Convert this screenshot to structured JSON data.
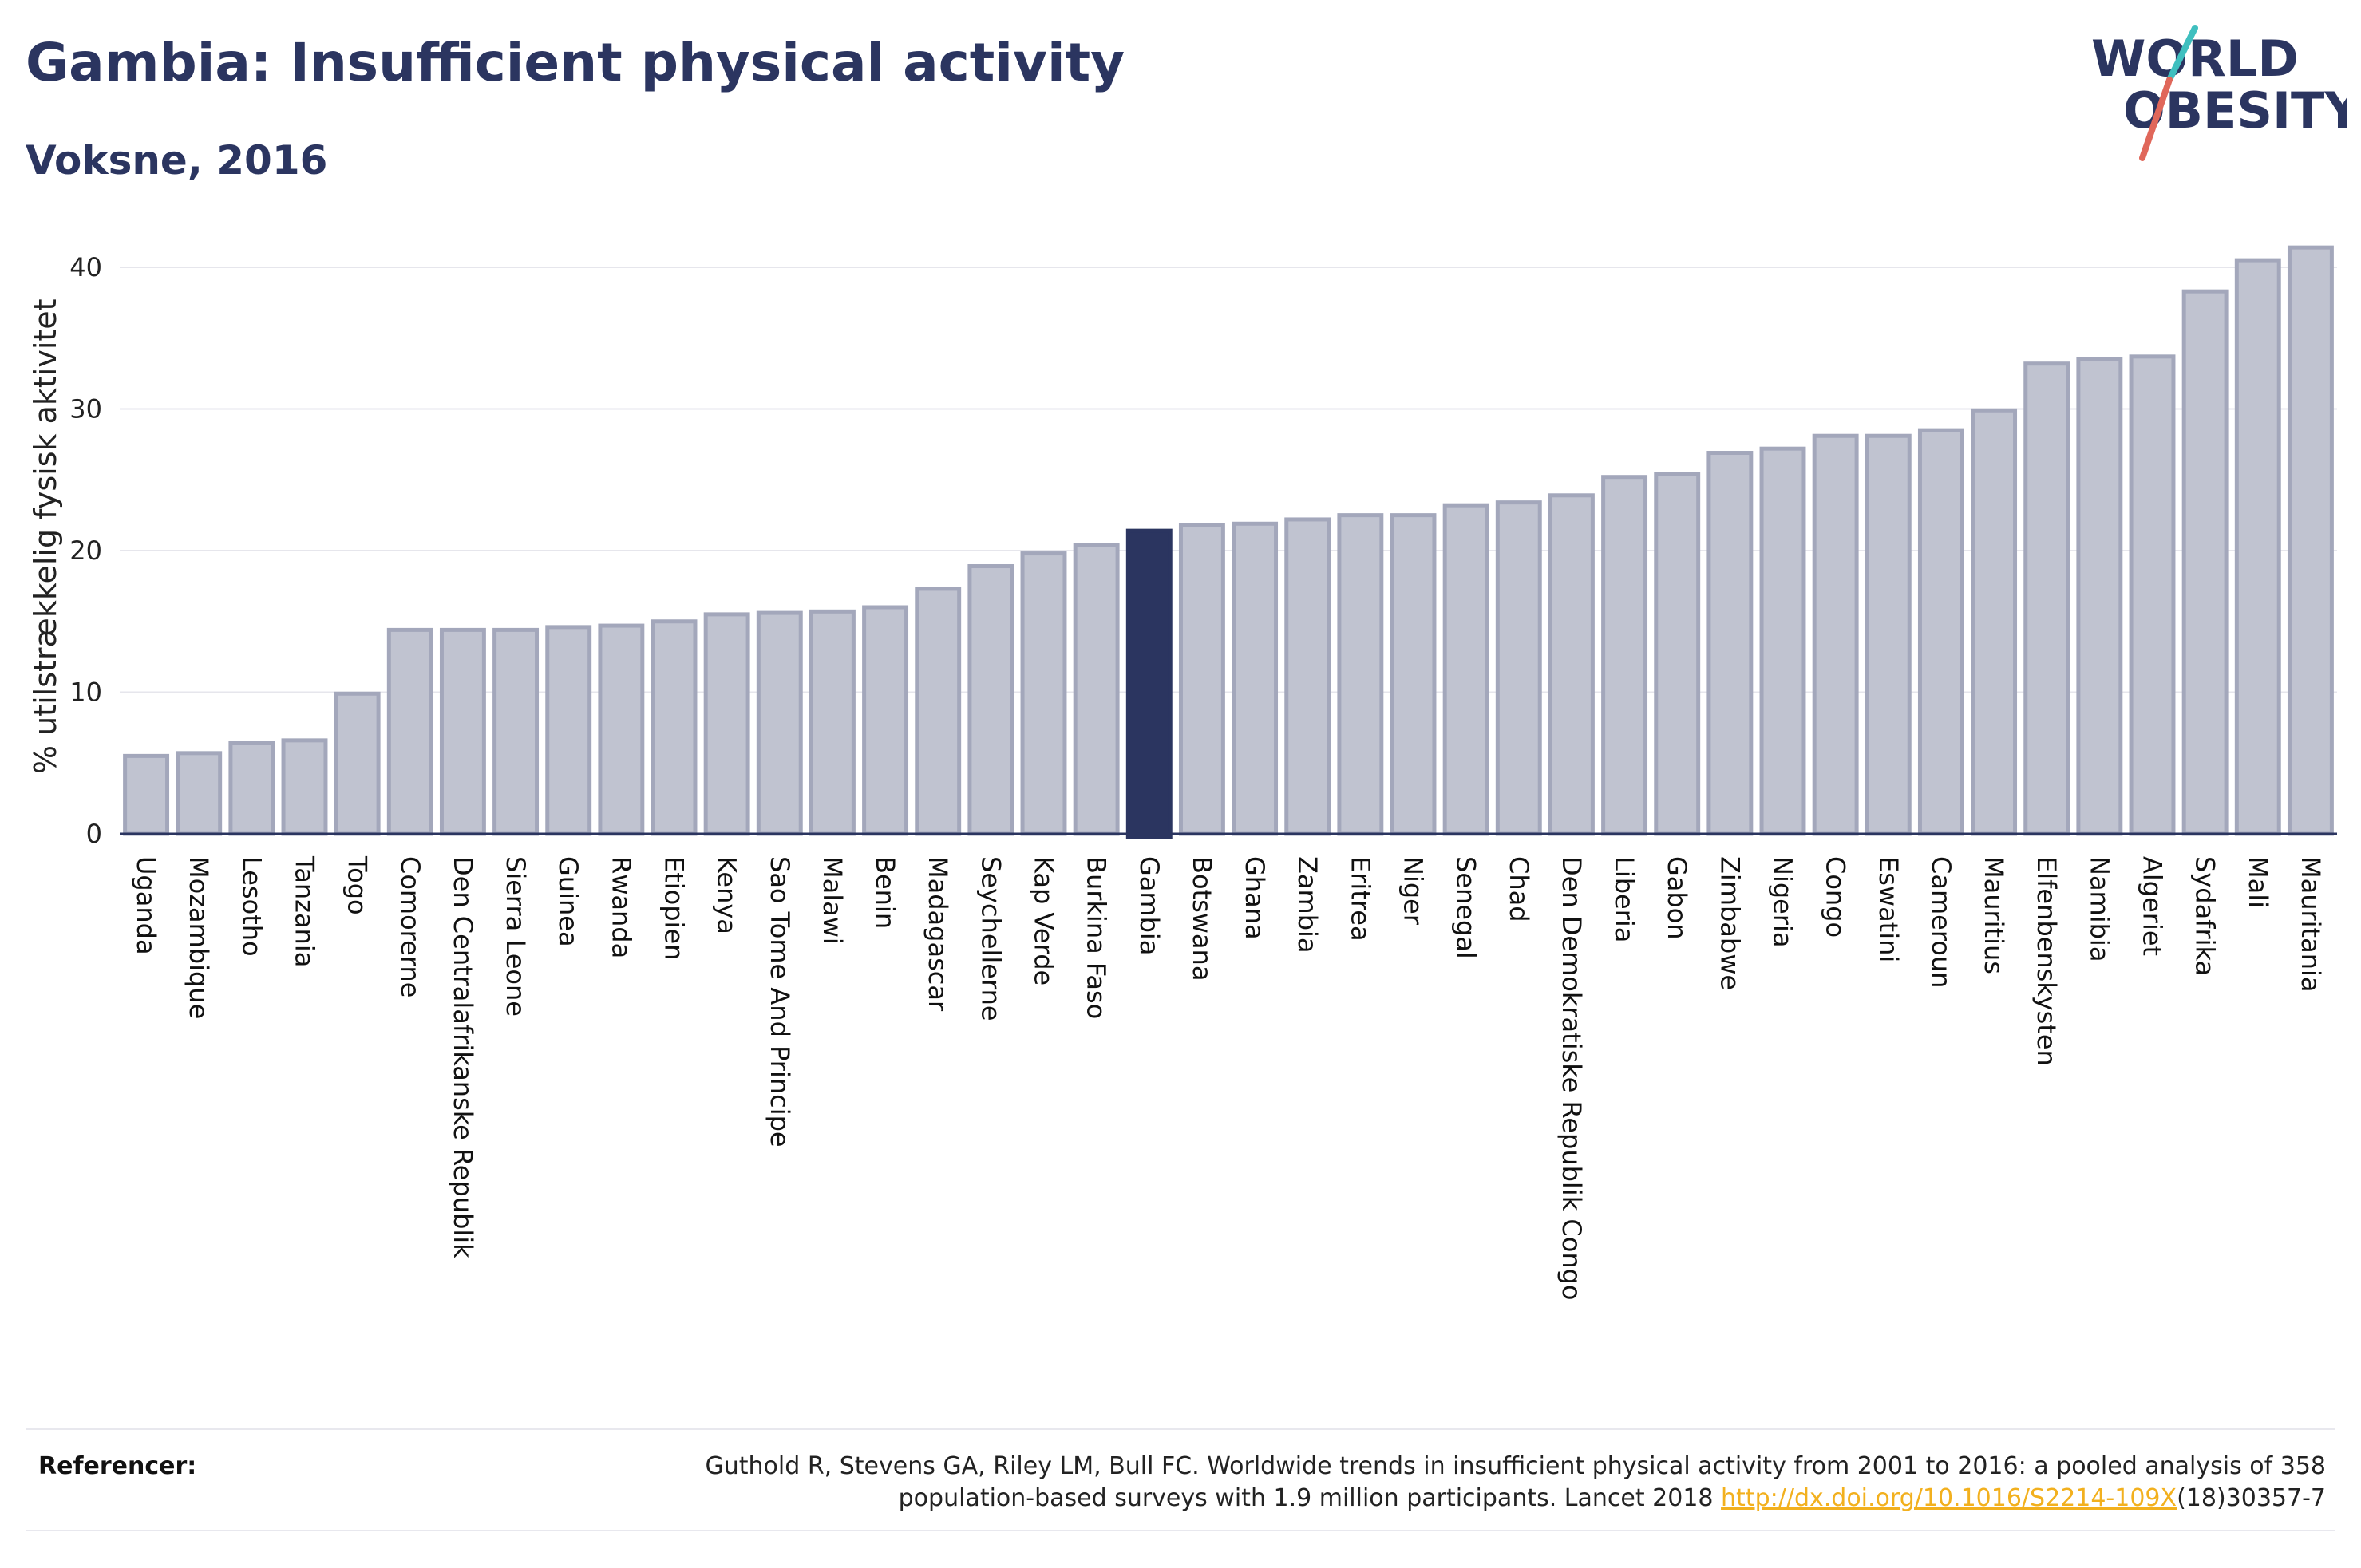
{
  "header": {
    "title": "Gambia: Insufficient physical activity",
    "subtitle": "Voksne, 2016"
  },
  "logo": {
    "line1": "WORLD",
    "line2": "OBESITY"
  },
  "colors": {
    "bar": "#c0c3d0",
    "bar_stroke": "#a3a7bb",
    "highlight": "#2b3560",
    "accent_teal": "#3fbfbf",
    "accent_red": "#e0675a"
  },
  "chart_data": {
    "type": "bar",
    "ylabel": "% utilstrækkelig fysisk aktivitet",
    "ylim": [
      0,
      42
    ],
    "yticks": [
      0,
      10,
      20,
      30,
      40
    ],
    "grid": true,
    "highlight": "Gambia",
    "categories": [
      "Uganda",
      "Mozambique",
      "Lesotho",
      "Tanzania",
      "Togo",
      "Comorerne",
      "Den Centralafrikanske Republik",
      "Sierra Leone",
      "Guinea",
      "Rwanda",
      "Etiopien",
      "Kenya",
      "Sao Tome And Principe",
      "Malawi",
      "Benin",
      "Madagascar",
      "Seychellerne",
      "Kap Verde",
      "Burkina Faso",
      "Gambia",
      "Botswana",
      "Ghana",
      "Zambia",
      "Eritrea",
      "Niger",
      "Senegal",
      "Chad",
      "Den Demokratiske Republik Congo",
      "Liberia",
      "Gabon",
      "Zimbabwe",
      "Nigeria",
      "Congo",
      "Eswatini",
      "Cameroun",
      "Mauritius",
      "Elfenbenskysten",
      "Namibia",
      "Algeriet",
      "Sydafrika",
      "Mali",
      "Mauritania"
    ],
    "values": [
      5.5,
      5.7,
      6.4,
      6.6,
      9.9,
      14.4,
      14.4,
      14.4,
      14.6,
      14.7,
      15.0,
      15.5,
      15.6,
      15.7,
      16.0,
      17.3,
      18.9,
      19.8,
      20.4,
      21.4,
      21.8,
      21.9,
      22.2,
      22.5,
      22.5,
      23.2,
      23.4,
      23.9,
      25.2,
      25.4,
      26.9,
      27.2,
      28.1,
      28.1,
      28.5,
      29.9,
      33.2,
      33.5,
      33.7,
      38.3,
      40.5,
      41.4
    ]
  },
  "references": {
    "label": "Referencer:",
    "text_line1": "Guthold R, Stevens GA, Riley LM, Bull FC. Worldwide trends in insufficient physical activity from 2001 to 2016: a pooled analysis of 358",
    "text_line2_prefix": "population-based surveys with 1.9 million participants. Lancet 2018 ",
    "link": "http://dx.doi.org/10.1016/S2214-109X",
    "text_line2_suffix": "(18)30357-7"
  }
}
